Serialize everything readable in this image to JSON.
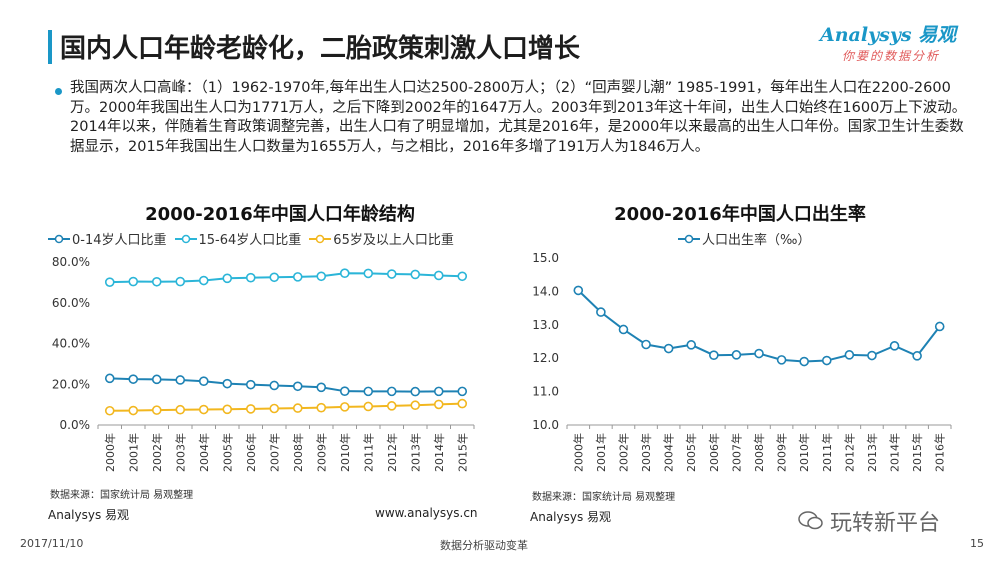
{
  "header": {
    "title": "国内人口年龄老龄化，二胎政策刺激人口增长",
    "logo_main": "Analysys 易观",
    "logo_sub": "你要的数据分析"
  },
  "body": {
    "paragraph": "我国两次人口高峰：（1）1962-1970年,每年出生人口达2500-2800万人；（2）“回声婴儿潮” 1985-1991，每年出生人口在2200-2600万。2000年我国出生人口为1771万人，之后下降到2002年的1647万人。2003年到2013年这十年间，出生人口始终在1600万上下波动。2014年以来，伴随着生育政策调整完善，出生人口有了明显增加，尤其是2016年，是2000年以来最高的出生人口年份。国家卫生计生委数据显示，2015年我国出生人口数量为1655万人，与之相比，2016年多增了191万人为1846万人。"
  },
  "left_panel": {
    "source": "数据来源：国家统计局  易观整理",
    "brand": "Analysys 易观",
    "url": "www.analysys.cn"
  },
  "right_panel": {
    "source": "数据来源：国家统计局  易观整理",
    "brand": "Analysys 易观"
  },
  "footer": {
    "date": "2017/11/10",
    "center": "数据分析驱动变革",
    "page": "15",
    "watermark": "玩转新平台"
  },
  "colors": {
    "accent": "#1a97c7",
    "series_blue_dark": "#1e82b4",
    "series_teal": "#2bb5d8",
    "series_gold": "#f2b71f"
  },
  "chart_data": [
    {
      "type": "line",
      "title": "2000-2016年中国人口年龄结构",
      "x": [
        "2000年",
        "2001年",
        "2002年",
        "2003年",
        "2004年",
        "2005年",
        "2006年",
        "2007年",
        "2008年",
        "2009年",
        "2010年",
        "2011年",
        "2012年",
        "2013年",
        "2014年",
        "2015年"
      ],
      "series": [
        {
          "name": "0-14岁人口比重",
          "values": [
            22.9,
            22.5,
            22.4,
            22.1,
            21.5,
            20.3,
            19.8,
            19.4,
            19.0,
            18.5,
            16.6,
            16.5,
            16.5,
            16.4,
            16.5,
            16.5
          ]
        },
        {
          "name": "15-64岁人口比重",
          "values": [
            70.1,
            70.4,
            70.3,
            70.4,
            70.9,
            72.0,
            72.3,
            72.5,
            72.7,
            73.0,
            74.5,
            74.4,
            74.1,
            73.9,
            73.4,
            73.0
          ]
        },
        {
          "name": "65岁及以上人口比重",
          "values": [
            7.0,
            7.1,
            7.3,
            7.5,
            7.6,
            7.7,
            7.9,
            8.1,
            8.3,
            8.5,
            8.9,
            9.1,
            9.4,
            9.7,
            10.1,
            10.5
          ]
        }
      ],
      "yticks": [
        "0.0%",
        "20.0%",
        "40.0%",
        "60.0%",
        "80.0%"
      ],
      "ylim": [
        0,
        80
      ],
      "grid": false,
      "legend": "top"
    },
    {
      "type": "line",
      "title": "2000-2016年中国人口出生率",
      "x": [
        "2000年",
        "2001年",
        "2002年",
        "2003年",
        "2004年",
        "2005年",
        "2006年",
        "2007年",
        "2008年",
        "2009年",
        "2010年",
        "2011年",
        "2012年",
        "2013年",
        "2014年",
        "2015年",
        "2016年"
      ],
      "series": [
        {
          "name": "人口出生率（‰）",
          "values": [
            14.03,
            13.38,
            12.86,
            12.41,
            12.29,
            12.4,
            12.09,
            12.1,
            12.14,
            11.95,
            11.9,
            11.93,
            12.1,
            12.08,
            12.37,
            12.07,
            12.95
          ]
        }
      ],
      "yticks": [
        "10.0",
        "11.0",
        "12.0",
        "13.0",
        "14.0",
        "15.0"
      ],
      "ylim": [
        10,
        15
      ],
      "grid": false,
      "legend": "top"
    }
  ]
}
